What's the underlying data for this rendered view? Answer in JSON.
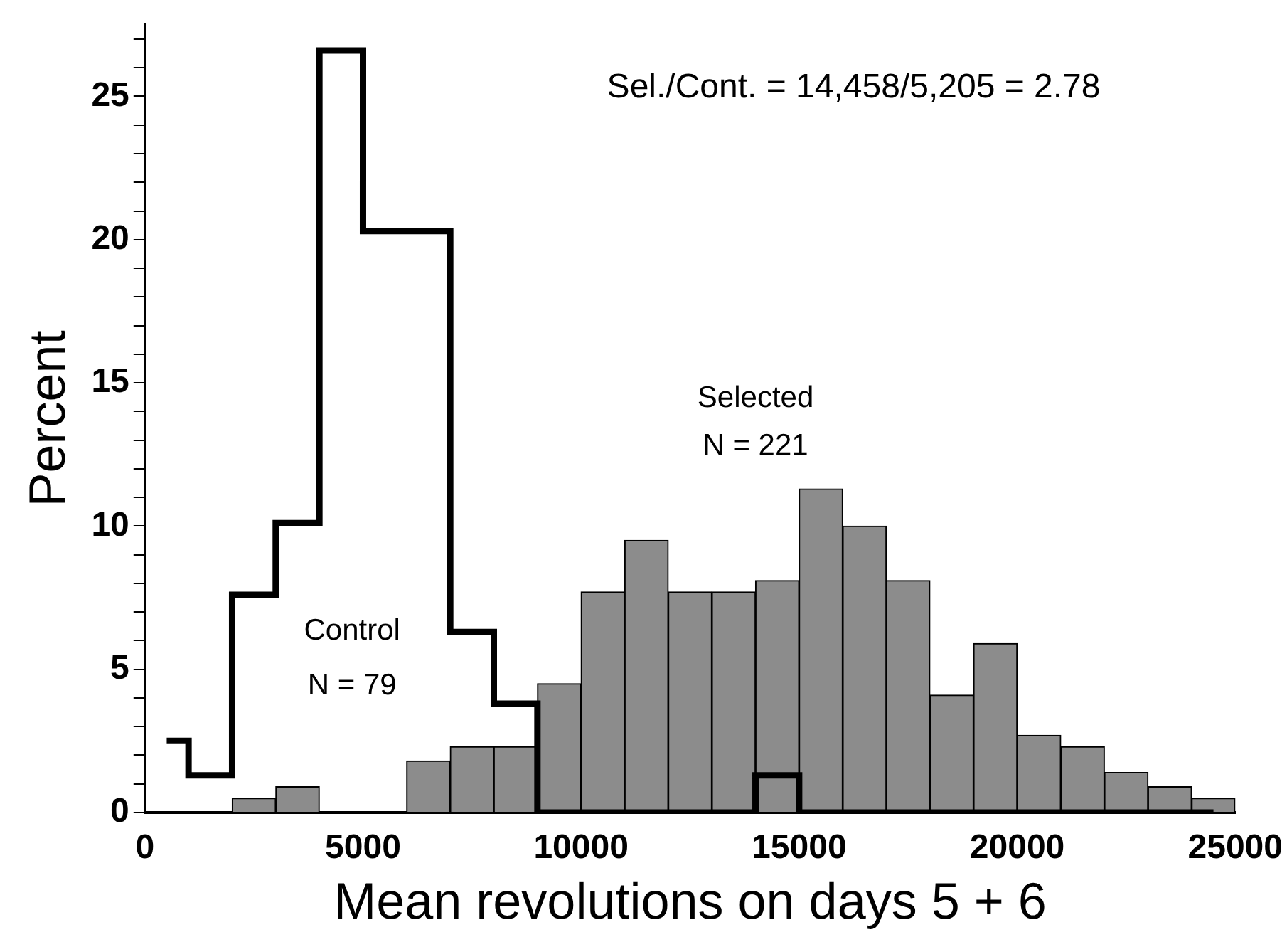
{
  "chart_data": {
    "type": "histogram",
    "xlabel": "Mean revolutions on days 5 + 6",
    "ylabel": "Percent",
    "bins": [
      0,
      1000,
      2000,
      3000,
      4000,
      5000,
      6000,
      7000,
      8000,
      9000,
      10000,
      11000,
      12000,
      13000,
      14000,
      15000,
      16000,
      17000,
      18000,
      19000,
      20000,
      21000,
      22000,
      23000,
      24000,
      25000
    ],
    "series": [
      {
        "type": "step",
        "color": "#000000",
        "x": [
          500,
          1500,
          2500,
          3500,
          4500,
          5500,
          6500,
          7500,
          8500,
          9500,
          10500,
          11500,
          12500,
          13500,
          14500,
          15500,
          16500,
          17500,
          18500,
          19500,
          20500,
          21500,
          22500,
          23500,
          24500
        ],
        "values": [
          2.5,
          1.3,
          7.6,
          10.1,
          26.6,
          20.3,
          20.3,
          6.3,
          3.8,
          0,
          0,
          0,
          0,
          0,
          1.3,
          0,
          0,
          0,
          0,
          0,
          0,
          0,
          0,
          0,
          0
        ]
      },
      {
        "color": "#8c8c8c",
        "values": [
          0,
          0,
          0.5,
          0.9,
          0,
          0,
          1.8,
          2.3,
          2.3,
          4.5,
          7.7,
          9.5,
          7.7,
          7.7,
          8.1,
          11.3,
          10,
          8.1,
          4.1,
          5.9,
          2.7,
          2.3,
          1.4,
          0.9,
          0.5
        ]
      }
    ],
    "xlim": [
      0,
      25000
    ],
    "xticks": [
      0,
      5000,
      10000,
      15000,
      20000,
      25000
    ],
    "ylim": [
      0,
      27.5
    ],
    "yticks": [
      0,
      {
        "value": 1,
        "label": null
      },
      {
        "value": 2,
        "label": null
      },
      {
        "value": 3,
        "label": null
      },
      {
        "value": 4,
        "label": null
      },
      5,
      {
        "value": 6,
        "label": null
      },
      {
        "value": 7,
        "label": null
      },
      {
        "value": 8,
        "label": null
      },
      {
        "value": 9,
        "label": null
      },
      10,
      {
        "value": 11,
        "label": null
      },
      {
        "value": 12,
        "label": null
      },
      {
        "value": 13,
        "label": null
      },
      {
        "value": 14,
        "label": null
      },
      15,
      {
        "value": 16,
        "label": null
      },
      {
        "value": 17,
        "label": null
      },
      {
        "value": 18,
        "label": null
      },
      {
        "value": 19,
        "label": null
      },
      20,
      {
        "value": 21,
        "label": null
      },
      {
        "value": 22,
        "label": null
      },
      {
        "value": 23,
        "label": null
      },
      {
        "value": 24,
        "label": null
      },
      25,
      {
        "value": 26,
        "label": null
      },
      {
        "value": 27,
        "label": null
      }
    ],
    "annotations": [
      "Sel./Cont. = 14,458/5,205 = 2.78",
      "Control",
      "N = 79",
      "Selected",
      "N = 221"
    ],
    "grid": false,
    "legend": false
  }
}
